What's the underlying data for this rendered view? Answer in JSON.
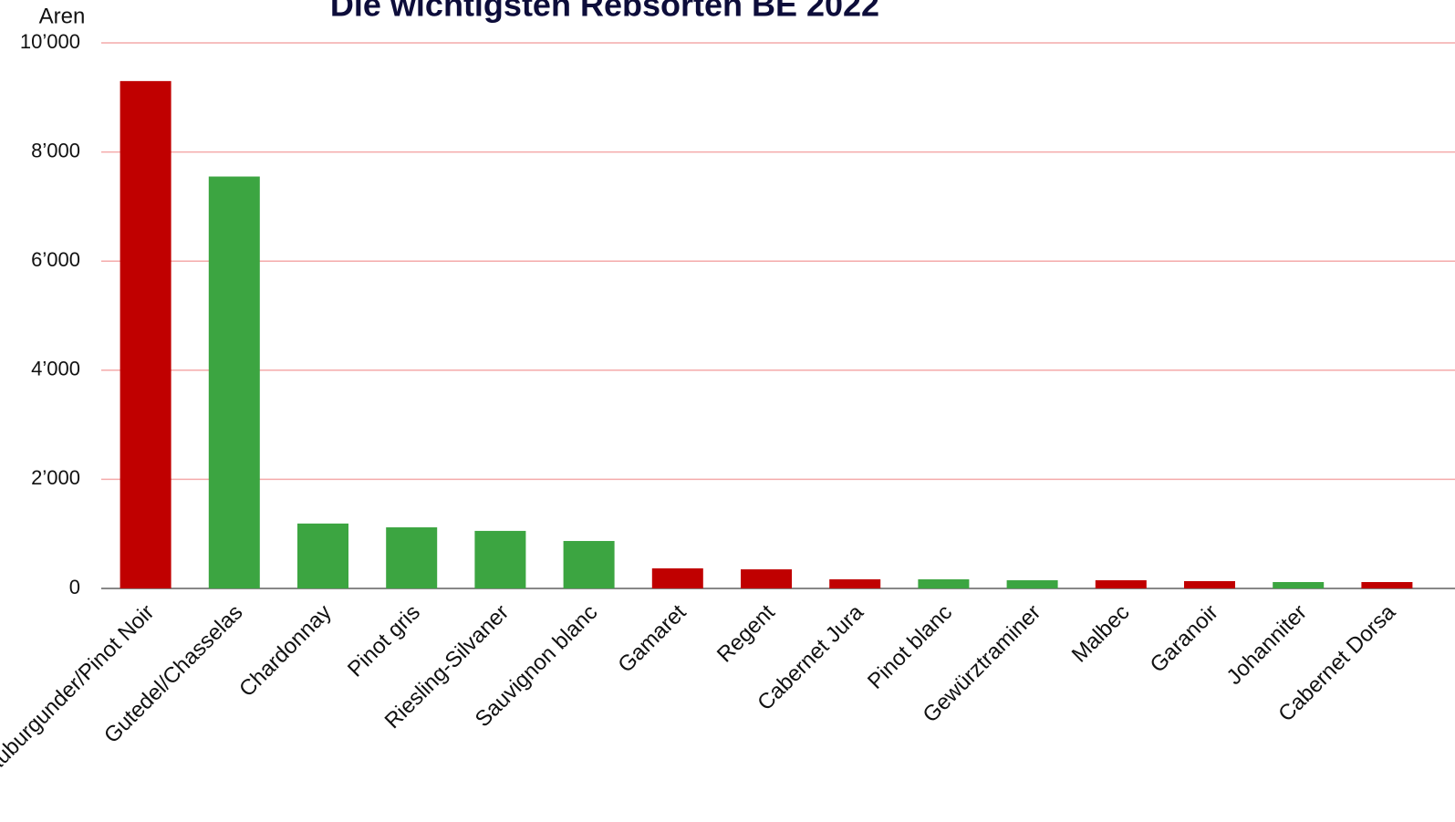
{
  "chart_data": {
    "type": "bar",
    "title": "Die wichtigsten Rebsorten BE 2022",
    "y_label": "Aren",
    "categories": [
      "Blauburgunder/Pinot Noir",
      "Gutedel/Chasselas",
      "Chardonnay",
      "Pinot gris",
      "Riesling-Silvaner",
      "Sauvignon blanc",
      "Gamaret",
      "Regent",
      "Cabernet Jura",
      "Pinot blanc",
      "Gewürztraminer",
      "Malbec",
      "Garanoir",
      "Johanniter",
      "Cabernet Dorsa"
    ],
    "values": [
      9300,
      7550,
      1190,
      1120,
      1055,
      870,
      368,
      350,
      167,
      167,
      150,
      150,
      134,
      117,
      117
    ],
    "colors": [
      "#c00000",
      "#3ca541",
      "#3ca541",
      "#3ca541",
      "#3ca541",
      "#3ca541",
      "#c00000",
      "#c00000",
      "#c00000",
      "#3ca541",
      "#3ca541",
      "#c00000",
      "#c00000",
      "#3ca541",
      "#c00000"
    ],
    "ylim": [
      0,
      10000
    ],
    "yticks": [
      0,
      {
        "value": 2000,
        "label": "2’000"
      },
      {
        "value": 4000,
        "label": "4’000"
      },
      {
        "value": 6000,
        "label": "6’000"
      },
      {
        "value": 8000,
        "label": "8’000"
      },
      {
        "value": 10000,
        "label": "10’000"
      }
    ],
    "grid": true
  }
}
